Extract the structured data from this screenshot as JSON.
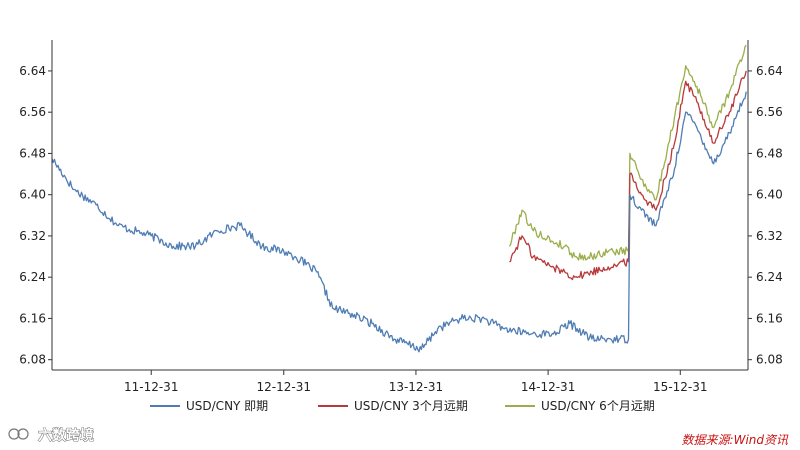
{
  "chart_data": {
    "type": "line",
    "title": "",
    "xlabel": "",
    "ylabel": "",
    "ylim": [
      6.06,
      6.7
    ],
    "yticks": [
      "6.08",
      "6.16",
      "6.24",
      "6.32",
      "6.40",
      "6.48",
      "6.56",
      "6.64"
    ],
    "xticks": [
      "11-12-31",
      "12-12-31",
      "13-12-31",
      "14-12-31",
      "15-12-31"
    ],
    "grid": false,
    "legend_position": "bottom",
    "series": [
      {
        "name": "USD/CNY 即期",
        "color": "#4f7db3",
        "points": [
          [
            "2011-04-01",
            6.47
          ],
          [
            "2011-06-01",
            6.41
          ],
          [
            "2011-08-01",
            6.38
          ],
          [
            "2011-10-01",
            6.34
          ],
          [
            "2011-12-31",
            6.32
          ],
          [
            "2012-03-01",
            6.3
          ],
          [
            "2012-05-01",
            6.3
          ],
          [
            "2012-07-01",
            6.33
          ],
          [
            "2012-09-01",
            6.34
          ],
          [
            "2012-11-01",
            6.3
          ],
          [
            "2012-12-31",
            6.29
          ],
          [
            "2013-02-01",
            6.28
          ],
          [
            "2013-04-01",
            6.25
          ],
          [
            "2013-05-15",
            6.18
          ],
          [
            "2013-07-01",
            6.17
          ],
          [
            "2013-09-01",
            6.15
          ],
          [
            "2013-11-01",
            6.12
          ],
          [
            "2014-01-15",
            6.1
          ],
          [
            "2014-03-01",
            6.14
          ],
          [
            "2014-05-01",
            6.16
          ],
          [
            "2014-07-01",
            6.16
          ],
          [
            "2014-09-01",
            6.14
          ],
          [
            "2014-11-15",
            6.13
          ],
          [
            "2015-01-15",
            6.13
          ],
          [
            "2015-03-01",
            6.15
          ],
          [
            "2015-05-01",
            6.12
          ],
          [
            "2015-07-15",
            6.12
          ],
          [
            "2015-08-10",
            6.12
          ],
          [
            "2015-08-14",
            6.4
          ],
          [
            "2015-09-15",
            6.37
          ],
          [
            "2015-10-25",
            6.34
          ],
          [
            "2015-12-15",
            6.45
          ],
          [
            "2016-01-15",
            6.56
          ],
          [
            "2016-02-15",
            6.53
          ],
          [
            "2016-04-01",
            6.46
          ],
          [
            "2016-05-15",
            6.52
          ],
          [
            "2016-06-30",
            6.6
          ]
        ]
      },
      {
        "name": "USD/CNY 3个月远期",
        "color": "#b8393a",
        "points": [
          [
            "2014-09-15",
            6.27
          ],
          [
            "2014-10-20",
            6.32
          ],
          [
            "2014-11-20",
            6.28
          ],
          [
            "2015-01-10",
            6.26
          ],
          [
            "2015-02-15",
            6.25
          ],
          [
            "2015-03-15",
            6.24
          ],
          [
            "2015-05-01",
            6.25
          ],
          [
            "2015-06-15",
            6.26
          ],
          [
            "2015-08-10",
            6.27
          ],
          [
            "2015-08-14",
            6.44
          ],
          [
            "2015-09-15",
            6.4
          ],
          [
            "2015-10-25",
            6.37
          ],
          [
            "2015-12-15",
            6.5
          ],
          [
            "2016-01-15",
            6.62
          ],
          [
            "2016-02-15",
            6.58
          ],
          [
            "2016-04-01",
            6.5
          ],
          [
            "2016-05-15",
            6.56
          ],
          [
            "2016-06-30",
            6.64
          ]
        ]
      },
      {
        "name": "USD/CNY 6个月远期",
        "color": "#9aae4a",
        "points": [
          [
            "2014-09-15",
            6.3
          ],
          [
            "2014-10-20",
            6.37
          ],
          [
            "2014-11-20",
            6.33
          ],
          [
            "2015-01-10",
            6.31
          ],
          [
            "2015-02-15",
            6.3
          ],
          [
            "2015-03-15",
            6.28
          ],
          [
            "2015-05-01",
            6.28
          ],
          [
            "2015-06-15",
            6.29
          ],
          [
            "2015-08-10",
            6.29
          ],
          [
            "2015-08-14",
            6.48
          ],
          [
            "2015-09-15",
            6.43
          ],
          [
            "2015-10-25",
            6.39
          ],
          [
            "2015-12-15",
            6.55
          ],
          [
            "2016-01-15",
            6.65
          ],
          [
            "2016-02-15",
            6.61
          ],
          [
            "2016-04-01",
            6.53
          ],
          [
            "2016-05-15",
            6.6
          ],
          [
            "2016-06-30",
            6.69
          ]
        ]
      }
    ]
  },
  "watermark": "六数跨境",
  "source": "数据来源:Wind资讯"
}
